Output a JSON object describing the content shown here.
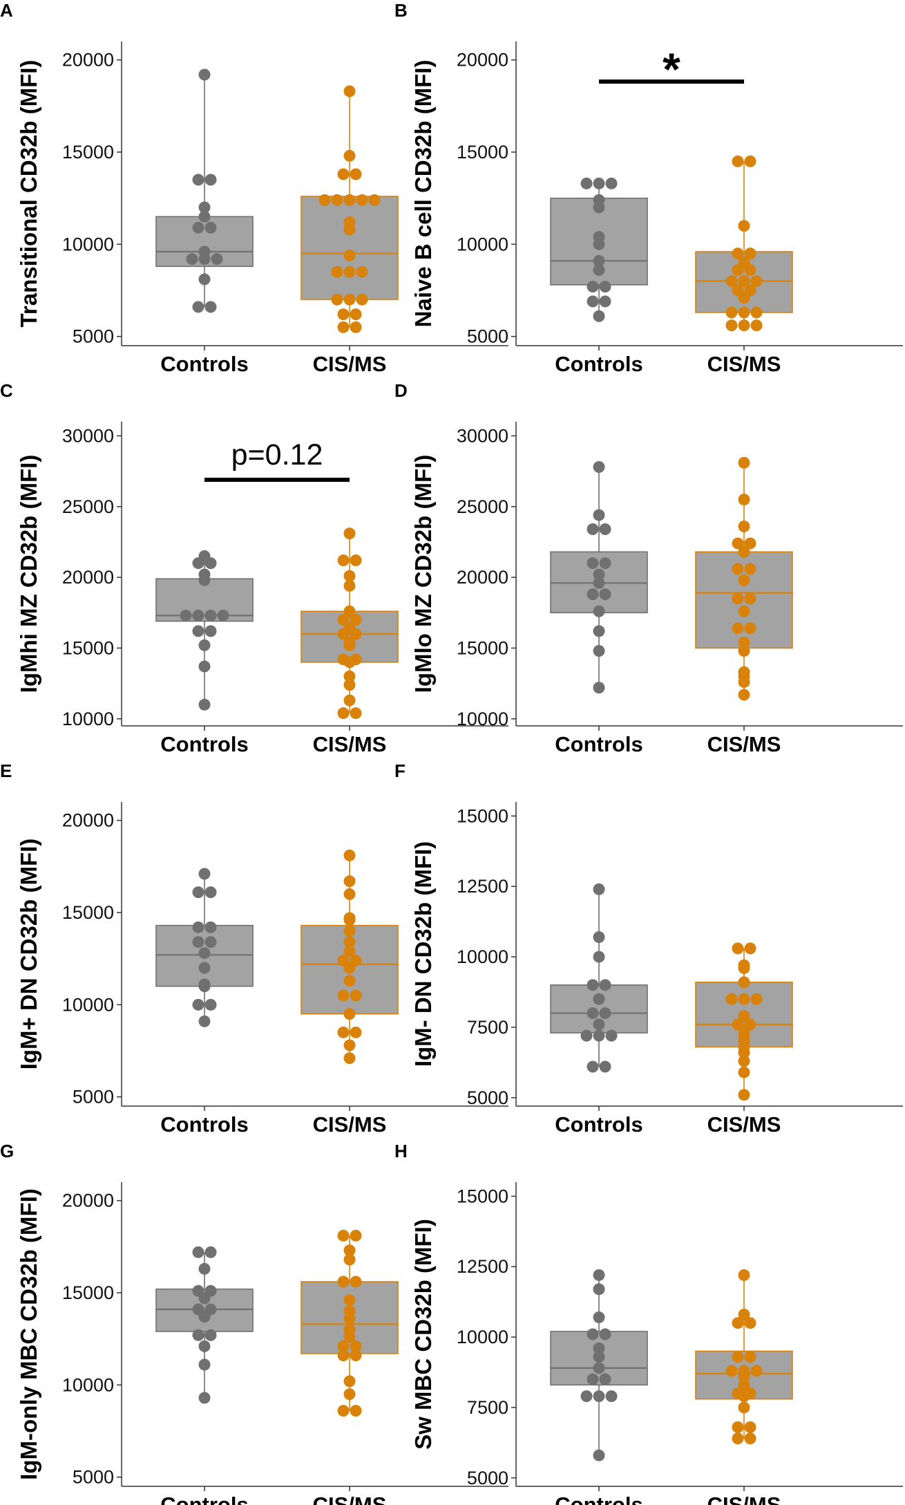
{
  "colors": {
    "Controls": "#707070",
    "CIS/MS": "#D9820A",
    "box_fill": "#A3A3A3",
    "axis": "#333333",
    "bracket": "#000000"
  },
  "chart_data": [
    {
      "panel": "A",
      "type": "box",
      "ylabel": "Transitional CD32b (MFI)",
      "categories": [
        "Controls",
        "CIS/MS"
      ],
      "ylim": [
        4500,
        21000
      ],
      "yticks": [
        5000,
        10000,
        15000,
        20000
      ],
      "ytick_labels": [
        "5000",
        "10000",
        "15000",
        "20000"
      ],
      "series": [
        {
          "name": "Controls",
          "box": {
            "q1": 8800,
            "median": 9600,
            "q3": 11500,
            "whisker_low": 6600,
            "whisker_high": 19200
          },
          "points": [
            19200,
            13500,
            13500,
            12000,
            11500,
            10900,
            10900,
            9600,
            9200,
            9200,
            9200,
            8100,
            6600,
            6600
          ]
        },
        {
          "name": "CIS/MS",
          "box": {
            "q1": 7000,
            "median": 9500,
            "q3": 12600,
            "whisker_low": 5500,
            "whisker_high": 18300
          },
          "points": [
            18300,
            14800,
            13800,
            13800,
            12400,
            12400,
            12400,
            12400,
            12400,
            11200,
            10800,
            9400,
            8500,
            8500,
            8500,
            7000,
            7000,
            7000,
            6200,
            6200,
            5500,
            5500
          ]
        }
      ],
      "annotation": null
    },
    {
      "panel": "B",
      "type": "box",
      "ylabel": "Naive B cell CD32b (MFI)",
      "categories": [
        "Controls",
        "CIS/MS"
      ],
      "ylim": [
        4500,
        21000
      ],
      "yticks": [
        5000,
        10000,
        15000,
        20000
      ],
      "ytick_labels": [
        "5000",
        "10000",
        "15000",
        "20000"
      ],
      "series": [
        {
          "name": "Controls",
          "box": {
            "q1": 7800,
            "median": 9100,
            "q3": 12500,
            "whisker_low": 6100,
            "whisker_high": 13300
          },
          "points": [
            13300,
            13300,
            13300,
            12400,
            12000,
            10400,
            10000,
            9100,
            8600,
            7700,
            7700,
            6900,
            6900,
            6100
          ]
        },
        {
          "name": "CIS/MS",
          "box": {
            "q1": 6300,
            "median": 8000,
            "q3": 9600,
            "whisker_low": 5600,
            "whisker_high": 14500
          },
          "points": [
            14500,
            14500,
            11000,
            9500,
            9500,
            9000,
            8600,
            8600,
            8000,
            8000,
            8000,
            7500,
            7500,
            7100,
            6300,
            6300,
            6300,
            5600,
            5600,
            5600
          ]
        }
      ],
      "annotation": {
        "text": "*",
        "kind": "star"
      }
    },
    {
      "panel": "C",
      "type": "box",
      "ylabel": "IgMhi MZ CD32b (MFI)",
      "categories": [
        "Controls",
        "CIS/MS"
      ],
      "ylim": [
        9500,
        31000
      ],
      "yticks": [
        10000,
        15000,
        20000,
        25000,
        30000
      ],
      "ytick_labels": [
        "10000",
        "15000",
        "20000",
        "25000",
        "30000"
      ],
      "series": [
        {
          "name": "Controls",
          "box": {
            "q1": 16900,
            "median": 17300,
            "q3": 19900,
            "whisker_low": 11000,
            "whisker_high": 21500
          },
          "points": [
            21500,
            21000,
            21000,
            20200,
            19800,
            17300,
            17300,
            17300,
            17300,
            16200,
            16200,
            15200,
            13700,
            11000
          ]
        },
        {
          "name": "CIS/MS",
          "box": {
            "q1": 14000,
            "median": 16000,
            "q3": 17600,
            "whisker_low": 10400,
            "whisker_high": 23100
          },
          "points": [
            23100,
            21200,
            21200,
            20100,
            19400,
            17600,
            17000,
            17000,
            16400,
            16000,
            16000,
            15400,
            15200,
            14200,
            14200,
            14000,
            13000,
            12400,
            11300,
            10400,
            10400
          ]
        }
      ],
      "annotation": {
        "text": "p=0.12",
        "kind": "p"
      }
    },
    {
      "panel": "D",
      "type": "box",
      "ylabel": "IgMlo MZ CD32b (MFI)",
      "categories": [
        "Controls",
        "CIS/MS"
      ],
      "ylim": [
        9500,
        31000
      ],
      "yticks": [
        10000,
        15000,
        20000,
        25000,
        30000
      ],
      "ytick_labels": [
        "10000",
        "15000",
        "20000",
        "25000",
        "30000"
      ],
      "series": [
        {
          "name": "Controls",
          "box": {
            "q1": 17500,
            "median": 19600,
            "q3": 21800,
            "whisker_low": 12200,
            "whisker_high": 27800
          },
          "points": [
            27800,
            24400,
            23400,
            23400,
            21000,
            21000,
            20200,
            19600,
            18800,
            18800,
            17600,
            16200,
            14800,
            12200
          ]
        },
        {
          "name": "CIS/MS",
          "box": {
            "q1": 15000,
            "median": 18900,
            "q3": 21800,
            "whisker_low": 11700,
            "whisker_high": 28100
          },
          "points": [
            28100,
            25500,
            23600,
            22400,
            22400,
            21800,
            20600,
            20600,
            19800,
            18500,
            18500,
            17600,
            16400,
            16400,
            15400,
            14800,
            13300,
            13000,
            12600,
            11700
          ]
        }
      ],
      "annotation": null
    },
    {
      "panel": "E",
      "type": "box",
      "ylabel": "IgM+ DN CD32b (MFI)",
      "categories": [
        "Controls",
        "CIS/MS"
      ],
      "ylim": [
        4500,
        21000
      ],
      "yticks": [
        5000,
        10000,
        15000,
        20000
      ],
      "ytick_labels": [
        "5000",
        "10000",
        "15000",
        "20000"
      ],
      "series": [
        {
          "name": "Controls",
          "box": {
            "q1": 11000,
            "median": 12700,
            "q3": 14300,
            "whisker_low": 9100,
            "whisker_high": 17100
          },
          "points": [
            17100,
            16100,
            16100,
            14200,
            14200,
            13400,
            13400,
            12800,
            12000,
            11100,
            11000,
            10000,
            10000,
            9100
          ]
        },
        {
          "name": "CIS/MS",
          "box": {
            "q1": 9500,
            "median": 12200,
            "q3": 14300,
            "whisker_low": 7100,
            "whisker_high": 18100
          },
          "points": [
            18100,
            16700,
            16000,
            14700,
            14600,
            14000,
            13400,
            12900,
            12400,
            12400,
            12000,
            11300,
            10500,
            10500,
            9500,
            8500,
            8500,
            7800,
            7100
          ]
        }
      ],
      "annotation": null
    },
    {
      "panel": "F",
      "type": "box",
      "ylabel": "IgM- DN CD32b (MFI)",
      "categories": [
        "Controls",
        "CIS/MS"
      ],
      "ylim": [
        4700,
        15500
      ],
      "yticks": [
        5000,
        7500,
        10000,
        12500,
        15000
      ],
      "ytick_labels": [
        "5000",
        "7500",
        "10000",
        "12500",
        "15000"
      ],
      "series": [
        {
          "name": "Controls",
          "box": {
            "q1": 7300,
            "median": 8000,
            "q3": 9000,
            "whisker_low": 6100,
            "whisker_high": 12400
          },
          "points": [
            12400,
            10700,
            10000,
            9000,
            9000,
            8500,
            8000,
            8000,
            7600,
            7200,
            7200,
            7200,
            6100,
            6100
          ]
        },
        {
          "name": "CIS/MS",
          "box": {
            "q1": 6800,
            "median": 7600,
            "q3": 9100,
            "whisker_low": 5100,
            "whisker_high": 10300
          },
          "points": [
            10300,
            10300,
            9700,
            9600,
            9100,
            8500,
            8500,
            8500,
            7900,
            7600,
            7600,
            7400,
            7200,
            7000,
            6800,
            6600,
            6300,
            5900,
            5100
          ]
        }
      ],
      "annotation": null
    },
    {
      "panel": "G",
      "type": "box",
      "ylabel": "IgM-only MBC CD32b (MFI)",
      "categories": [
        "Controls",
        "CIS/MS"
      ],
      "ylim": [
        4500,
        21000
      ],
      "yticks": [
        5000,
        10000,
        15000,
        20000
      ],
      "ytick_labels": [
        "5000",
        "10000",
        "15000",
        "20000"
      ],
      "series": [
        {
          "name": "Controls",
          "box": {
            "q1": 12900,
            "median": 14100,
            "q3": 15200,
            "whisker_low": 9300,
            "whisker_high": 17200
          },
          "points": [
            17200,
            17200,
            16300,
            15100,
            15100,
            14700,
            14100,
            14100,
            13700,
            12700,
            12700,
            12100,
            11100,
            9300
          ]
        },
        {
          "name": "CIS/MS",
          "box": {
            "q1": 11700,
            "median": 13300,
            "q3": 15600,
            "whisker_low": 8600,
            "whisker_high": 18100
          },
          "points": [
            18100,
            18100,
            17300,
            16800,
            15600,
            15600,
            14600,
            14000,
            13600,
            13000,
            12600,
            12100,
            12100,
            11600,
            11600,
            10200,
            9500,
            8600,
            8600
          ]
        }
      ],
      "annotation": null
    },
    {
      "panel": "H",
      "type": "box",
      "ylabel": "Sw MBC CD32b (MFI)",
      "categories": [
        "Controls",
        "CIS/MS"
      ],
      "ylim": [
        4700,
        15500
      ],
      "yticks": [
        5000,
        7500,
        10000,
        12500,
        15000
      ],
      "ytick_labels": [
        "5000",
        "7500",
        "10000",
        "12500",
        "15000"
      ],
      "series": [
        {
          "name": "Controls",
          "box": {
            "q1": 8300,
            "median": 8900,
            "q3": 10200,
            "whisker_low": 5800,
            "whisker_high": 12200
          },
          "points": [
            12200,
            11700,
            10700,
            10100,
            10100,
            9600,
            9300,
            8900,
            8500,
            8500,
            7900,
            7900,
            7900,
            5800
          ]
        },
        {
          "name": "CIS/MS",
          "box": {
            "q1": 7800,
            "median": 8700,
            "q3": 9500,
            "whisker_low": 6400,
            "whisker_high": 12200
          },
          "points": [
            12200,
            10800,
            10500,
            10500,
            9300,
            9300,
            8800,
            8800,
            8800,
            8600,
            8300,
            8000,
            8000,
            7900,
            7500,
            6800,
            6800,
            6400,
            6400
          ]
        }
      ],
      "annotation": null
    }
  ]
}
